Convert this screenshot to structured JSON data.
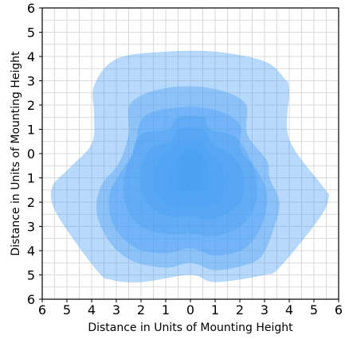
{
  "chart_data": {
    "type": "area",
    "title": "",
    "xlabel": "Distance in Units of Mounting Height",
    "ylabel": "Distance in Units of Mounting Height",
    "xlim": [
      -6,
      6
    ],
    "ylim": [
      -6,
      6
    ],
    "x_ticks": [
      {
        "value": -6,
        "label": "6"
      },
      {
        "value": -5,
        "label": "5"
      },
      {
        "value": -4,
        "label": "4"
      },
      {
        "value": -3,
        "label": "3"
      },
      {
        "value": -2,
        "label": "2"
      },
      {
        "value": -1,
        "label": "1"
      },
      {
        "value": 0,
        "label": "0"
      },
      {
        "value": 1,
        "label": "1"
      },
      {
        "value": 2,
        "label": "2"
      },
      {
        "value": 3,
        "label": "3"
      },
      {
        "value": 4,
        "label": "4"
      },
      {
        "value": 5,
        "label": "5"
      },
      {
        "value": 6,
        "label": "6"
      }
    ],
    "y_ticks": [
      {
        "value": 6,
        "label": "6"
      },
      {
        "value": 5,
        "label": "5"
      },
      {
        "value": 4,
        "label": "4"
      },
      {
        "value": 3,
        "label": "3"
      },
      {
        "value": 2,
        "label": "2"
      },
      {
        "value": 1,
        "label": "1"
      },
      {
        "value": 0,
        "label": "0"
      },
      {
        "value": -1,
        "label": "1"
      },
      {
        "value": -2,
        "label": "2"
      },
      {
        "value": -3,
        "label": "3"
      },
      {
        "value": -4,
        "label": "4"
      },
      {
        "value": -5,
        "label": "5"
      },
      {
        "value": -6,
        "label": "6"
      }
    ],
    "grid": true,
    "minor_grid_step": 0.5,
    "fill_color": "#4a9ff5",
    "fill_opacity": 0.4,
    "contours": [
      {
        "points": [
          [
            -3.9,
            2.8
          ],
          [
            -3.0,
            3.9
          ],
          [
            -1.0,
            4.2
          ],
          [
            1.0,
            4.2
          ],
          [
            3.0,
            3.8
          ],
          [
            3.8,
            3.1
          ],
          [
            4.0,
            2.6
          ],
          [
            4.0,
            0.6
          ],
          [
            5.4,
            -1.4
          ],
          [
            5.6,
            -1.8
          ],
          [
            5.2,
            -2.7
          ],
          [
            3.6,
            -4.7
          ],
          [
            3.0,
            -5.0
          ],
          [
            1.0,
            -5.3
          ],
          [
            0.0,
            -5.0
          ],
          [
            -2.0,
            -5.3
          ],
          [
            -3.2,
            -5.2
          ],
          [
            -3.8,
            -4.8
          ],
          [
            -5.4,
            -2.5
          ],
          [
            -5.6,
            -1.4
          ],
          [
            -4.9,
            -0.6
          ],
          [
            -4.0,
            0.4
          ],
          [
            -3.9,
            1.6
          ]
        ]
      },
      {
        "points": [
          [
            -2.4,
            2.1
          ],
          [
            -1.0,
            2.7
          ],
          [
            0.8,
            2.7
          ],
          [
            2.2,
            2.1
          ],
          [
            2.3,
            0.8
          ],
          [
            3.1,
            -0.3
          ],
          [
            3.2,
            -1.0
          ],
          [
            3.6,
            -2.0
          ],
          [
            3.4,
            -3.0
          ],
          [
            2.9,
            -4.2
          ],
          [
            2.2,
            -4.6
          ],
          [
            1.0,
            -4.8
          ],
          [
            0.0,
            -4.5
          ],
          [
            -1.0,
            -4.7
          ],
          [
            -2.4,
            -4.4
          ],
          [
            -3.3,
            -3.6
          ],
          [
            -3.8,
            -2.4
          ],
          [
            -3.6,
            -1.3
          ],
          [
            -2.9,
            -0.4
          ],
          [
            -2.5,
            0.8
          ]
        ]
      },
      {
        "points": [
          [
            -1.9,
            1.5
          ],
          [
            -0.5,
            1.9
          ],
          [
            1.0,
            1.8
          ],
          [
            2.0,
            1.2
          ],
          [
            2.0,
            0.2
          ],
          [
            2.7,
            -0.7
          ],
          [
            3.1,
            -1.7
          ],
          [
            2.9,
            -2.9
          ],
          [
            2.2,
            -3.9
          ],
          [
            1.0,
            -4.2
          ],
          [
            0.0,
            -3.9
          ],
          [
            -1.0,
            -4.1
          ],
          [
            -2.2,
            -3.9
          ],
          [
            -3.1,
            -3.0
          ],
          [
            -3.3,
            -1.8
          ],
          [
            -2.9,
            -0.9
          ],
          [
            -2.3,
            0.1
          ]
        ]
      },
      {
        "points": [
          [
            -2.0,
            0.8
          ],
          [
            -0.9,
            1.0
          ],
          [
            -0.5,
            1.5
          ],
          [
            0.5,
            1.5
          ],
          [
            0.8,
            1.0
          ],
          [
            1.8,
            0.7
          ],
          [
            2.4,
            -0.2
          ],
          [
            2.7,
            -1.2
          ],
          [
            2.6,
            -2.2
          ],
          [
            2.0,
            -3.0
          ],
          [
            1.0,
            -3.4
          ],
          [
            0.0,
            -3.3
          ],
          [
            -1.0,
            -3.3
          ],
          [
            -2.0,
            -3.0
          ],
          [
            -2.6,
            -2.2
          ],
          [
            -2.7,
            -1.1
          ],
          [
            -2.4,
            -0.1
          ]
        ]
      },
      {
        "points": [
          [
            -1.6,
            0.2
          ],
          [
            -0.8,
            0.5
          ],
          [
            -0.5,
            1.0
          ],
          [
            0.5,
            1.0
          ],
          [
            0.9,
            0.4
          ],
          [
            1.6,
            0.0
          ],
          [
            2.1,
            -0.7
          ],
          [
            2.1,
            -1.8
          ],
          [
            1.6,
            -2.4
          ],
          [
            0.8,
            -2.7
          ],
          [
            0.0,
            -2.6
          ],
          [
            -0.8,
            -2.6
          ],
          [
            -1.6,
            -2.2
          ],
          [
            -2.0,
            -1.5
          ],
          [
            -2.0,
            -0.6
          ]
        ]
      },
      {
        "points": [
          [
            -1.3,
            -0.3
          ],
          [
            -0.7,
            0.2
          ],
          [
            -0.4,
            0.5
          ],
          [
            0.4,
            0.5
          ],
          [
            0.7,
            0.1
          ],
          [
            1.2,
            -0.4
          ],
          [
            1.4,
            -1.2
          ],
          [
            1.2,
            -1.9
          ],
          [
            0.6,
            -2.2
          ],
          [
            0.0,
            -2.1
          ],
          [
            -0.6,
            -2.2
          ],
          [
            -1.2,
            -1.9
          ],
          [
            -1.5,
            -1.2
          ]
        ]
      },
      {
        "points": [
          [
            -0.8,
            -0.6
          ],
          [
            -0.4,
            -0.1
          ],
          [
            0.4,
            -0.1
          ],
          [
            0.8,
            -0.5
          ],
          [
            0.8,
            -1.3
          ],
          [
            0.5,
            -1.6
          ],
          [
            0.0,
            -1.5
          ],
          [
            -0.5,
            -1.6
          ],
          [
            -0.9,
            -1.3
          ]
        ]
      },
      {
        "points": [
          [
            -0.35,
            0.1
          ],
          [
            0.35,
            0.1
          ],
          [
            0.4,
            -0.9
          ],
          [
            0.4,
            -1.4
          ],
          [
            0.0,
            -1.5
          ],
          [
            -0.4,
            -1.4
          ],
          [
            -0.4,
            -0.9
          ]
        ]
      }
    ]
  }
}
